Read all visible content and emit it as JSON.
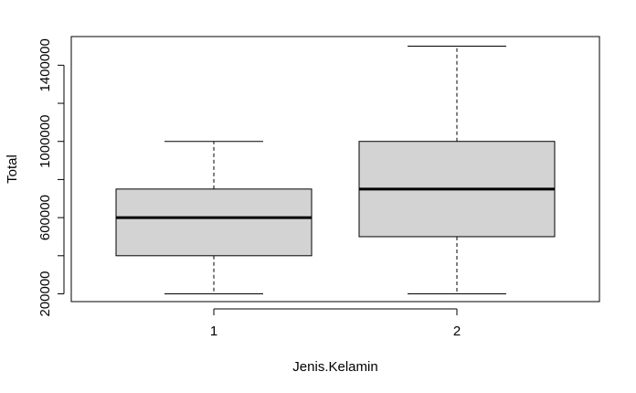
{
  "chart_data": {
    "type": "boxplot",
    "title": "",
    "xlabel": "Jenis.Kelamin",
    "ylabel": "Total",
    "categories": [
      "1",
      "2"
    ],
    "boxes": [
      {
        "category": "1",
        "min": 200000,
        "q1": 400000,
        "median": 600000,
        "q3": 750000,
        "max": 1000000
      },
      {
        "category": "2",
        "min": 200000,
        "q1": 500000,
        "median": 750000,
        "q3": 1000000,
        "max": 1500000
      }
    ],
    "yticks": [
      200000,
      600000,
      1000000,
      1400000
    ],
    "ytick_labels": [
      "200000",
      "600000",
      "1000000",
      "1400000"
    ],
    "ylim": [
      150000,
      1550000
    ],
    "box_fill": "#d3d3d3",
    "line_color": "#000000",
    "grid": false,
    "legend": "none"
  }
}
